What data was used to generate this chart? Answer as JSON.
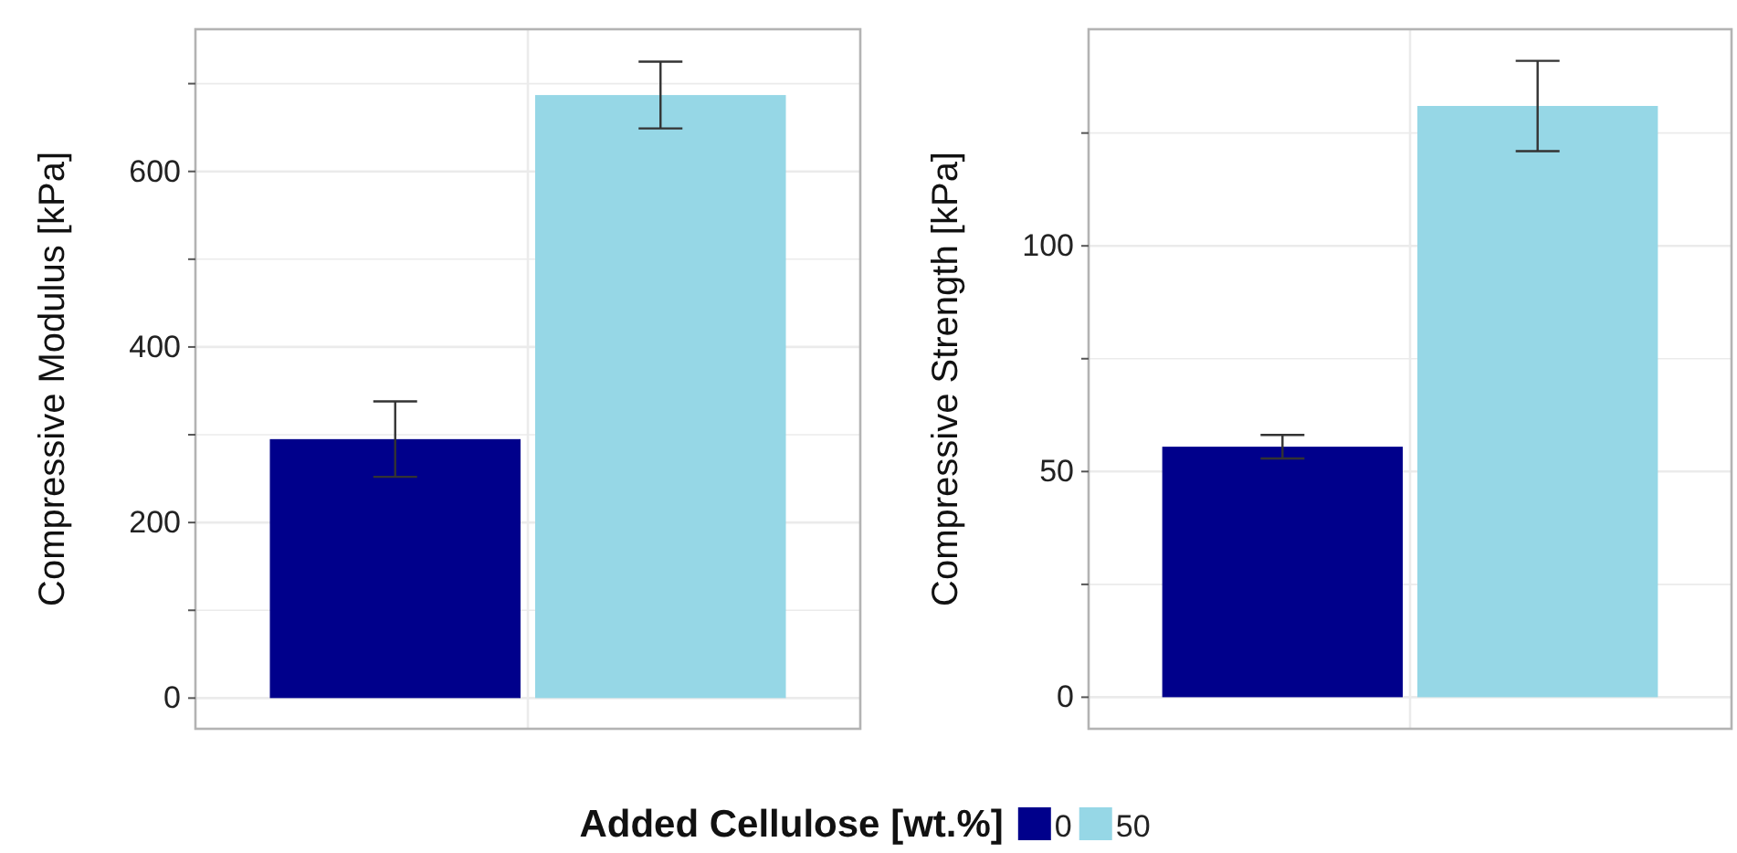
{
  "chart_data": [
    {
      "type": "bar",
      "ylabel": "Compressive Modulus [kPa]",
      "categories": [
        null
      ],
      "legend_title": "Added Cellulose [wt.%]",
      "legend": "bottom",
      "grid": true,
      "series": [
        {
          "name": "0",
          "color": "#00008b",
          "values": [
            295
          ],
          "errors": [
            43
          ]
        },
        {
          "name": "50",
          "color": "#96d7e6",
          "values": [
            687
          ],
          "errors": [
            38
          ]
        }
      ],
      "ylim": [
        -35,
        762
      ],
      "yticks": [
        0,
        {
          "value": 100,
          "label": null
        },
        200,
        {
          "value": 300,
          "label": null
        },
        400,
        {
          "value": 500,
          "label": null
        },
        600,
        {
          "value": 700,
          "label": null
        }
      ]
    },
    {
      "type": "bar",
      "ylabel": "Compressive Strength [kPa]",
      "categories": [
        null
      ],
      "grid": true,
      "series": [
        {
          "color": "#00008b",
          "values": [
            55.5
          ],
          "errors": [
            2.6
          ]
        },
        {
          "color": "#96d7e6",
          "values": [
            131
          ],
          "errors": [
            10
          ]
        }
      ],
      "ylim": [
        -7,
        148
      ],
      "yticks": [
        0,
        {
          "value": 25,
          "label": null
        },
        50,
        {
          "value": 75,
          "label": null
        },
        100,
        {
          "value": 125,
          "label": null
        }
      ]
    }
  ]
}
